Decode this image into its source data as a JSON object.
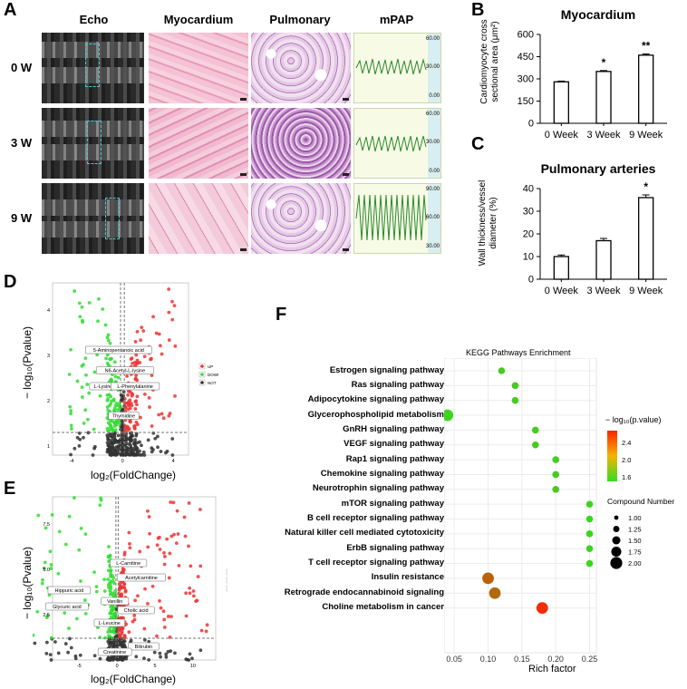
{
  "panels": {
    "A": "A",
    "B": "B",
    "C": "C",
    "D": "D",
    "E": "E",
    "F": "F"
  },
  "panel_a": {
    "columns": [
      "Echo",
      "Myocardium",
      "Pulmonary",
      "mPAP"
    ],
    "rows": [
      "0 W",
      "3 W",
      "9 W"
    ],
    "mpap_axis": [
      [
        "60.00",
        "30.00",
        "0.00"
      ],
      [
        "60.00",
        "30.00",
        "0.00"
      ],
      [
        "90.00",
        "60.00",
        "30.00"
      ]
    ]
  },
  "chart_data": [
    {
      "id": "B",
      "type": "bar",
      "title": "Myocardium",
      "ylabel": "Cardiomyocyte cross sectional area (μm²)",
      "ylabel_line1": "Cardiomyocyte cross",
      "ylabel_line2": "sectional area (μm²)",
      "categories": [
        "0 Week",
        "3 Week",
        "9 Week"
      ],
      "values": [
        280,
        350,
        460
      ],
      "errors": [
        5,
        6,
        8
      ],
      "significance": [
        "",
        "*",
        "**"
      ],
      "ylim": [
        0,
        600
      ],
      "yticks": [
        "0",
        "150",
        "300",
        "450",
        "600"
      ],
      "color": "#000000"
    },
    {
      "id": "C",
      "type": "bar",
      "title": "Pulmonary arteries",
      "ylabel_line1": "Wall thickness/vessel",
      "ylabel_line2": "diameter (%)",
      "categories": [
        "0 Week",
        "3 Week",
        "9 Week"
      ],
      "values": [
        10,
        17,
        36
      ],
      "errors": [
        0.7,
        1,
        1.2
      ],
      "significance": [
        "",
        "",
        "*"
      ],
      "ylim": [
        0,
        40
      ],
      "yticks": [
        "0",
        "10",
        "20",
        "30",
        "40"
      ],
      "color": "#000000"
    },
    {
      "id": "D",
      "type": "scatter",
      "xlabel": "log₂(FoldChange)",
      "ylabel": "− log₁₀(Pvalue)",
      "xticks": [
        "-4",
        "0",
        "4"
      ],
      "yticks": [
        "1",
        "2",
        "3",
        "4"
      ],
      "legend": [
        "UP",
        "DOWN",
        "NOT"
      ],
      "legend_colors": [
        "#ee3333",
        "#33dd33",
        "#333333"
      ],
      "annotations": [
        "5-Aminopentanoic acid",
        "N6-Acetyl-L-lysine",
        "L-Lysine",
        "L-Phenylalanine",
        "Thymidine"
      ]
    },
    {
      "id": "E",
      "type": "scatter",
      "xlabel": "log₂(FoldChange)",
      "ylabel": "− log₁₀(Pvalue)",
      "xticks": [
        "-5",
        "0",
        "5",
        "10"
      ],
      "yticks": [
        "2.5",
        "5.0",
        "7.5"
      ],
      "legend": [
        "UP",
        "DOWN",
        "NOT"
      ],
      "legend_colors": [
        "#ee3333",
        "#33dd33",
        "#333333"
      ],
      "annotations": [
        "L-Carnitine",
        "Acetylcarnitine",
        "Hippuric acid",
        "Glycuric acid",
        "Vanillin",
        "L-Leucine",
        "Cholic acid",
        "Bilirubin",
        "Creatinine"
      ]
    },
    {
      "id": "F",
      "type": "scatter",
      "title": "KEGG Pathways Enrichment",
      "xlabel": "Rich factor",
      "xticks": [
        "0.05",
        "0.10",
        "0.15",
        "0.20",
        "0.25"
      ],
      "xlim": [
        0.035,
        0.26
      ],
      "categories": [
        "Estrogen signaling pathway",
        "Ras signaling pathway",
        "Adipocytokine signaling pathway",
        "Glycerophospholipid metabolism",
        "GnRH signaling pathway",
        "VEGF signaling pathway",
        "Rap1 signaling pathway",
        "Chemokine signaling pathway",
        "Neurotrophin signaling pathway",
        "mTOR signaling pathway",
        "B cell receptor signaling pathway",
        "Natural killer cell mediated cytotoxicity",
        "ErbB signaling pathway",
        "T cell receptor signaling pathway",
        "Insulin resistance",
        "Retrograde endocannabinoid signaling",
        "Choline metabolism in cancer"
      ],
      "rich_factor": [
        0.12,
        0.14,
        0.14,
        0.04,
        0.17,
        0.17,
        0.2,
        0.2,
        0.2,
        0.25,
        0.25,
        0.25,
        0.25,
        0.25,
        0.1,
        0.11,
        0.18
      ],
      "neg_log10_p": [
        1.6,
        1.6,
        1.6,
        1.55,
        1.6,
        1.6,
        1.6,
        1.6,
        1.6,
        1.55,
        1.55,
        1.55,
        1.55,
        1.55,
        2.2,
        2.15,
        2.5
      ],
      "compound_number": [
        1,
        1,
        1,
        2,
        1,
        1,
        1,
        1,
        1,
        1,
        1,
        1,
        1,
        1,
        2,
        2,
        2
      ],
      "color_legend_title": "− log₁₀(p.value)",
      "color_ticks": [
        "2.4",
        "2.0",
        "1.6"
      ],
      "size_legend_title": "Compound Number",
      "size_ticks": [
        "1.00",
        "1.25",
        "1.50",
        "1.75",
        "2.00"
      ],
      "colormap": [
        "#33dd22",
        "#ff2200"
      ]
    }
  ]
}
